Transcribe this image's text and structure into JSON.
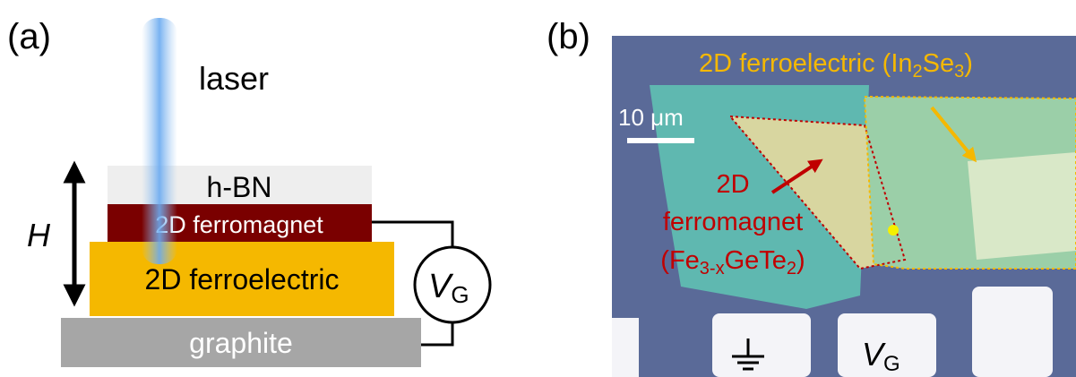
{
  "panel_a": {
    "label": "(a)",
    "laser": "laser",
    "hbn": "h-BN",
    "ferromagnet": "2D ferromagnet",
    "ferroelectric": "2D ferroelectric",
    "graphite": "graphite",
    "height": "H",
    "gate": [
      "V",
      "G"
    ]
  },
  "panel_b": {
    "label": "(b)",
    "scale_bar": "10 μm",
    "ferroelectric_label": [
      "2D ferroelectric (In",
      "2",
      "Se",
      "3",
      ")"
    ],
    "ferromagnet_label": [
      "2D",
      "ferromagnet",
      "(Fe",
      "3-x",
      "GeTe",
      "2",
      ")"
    ],
    "gate": [
      "V",
      "G"
    ]
  }
}
